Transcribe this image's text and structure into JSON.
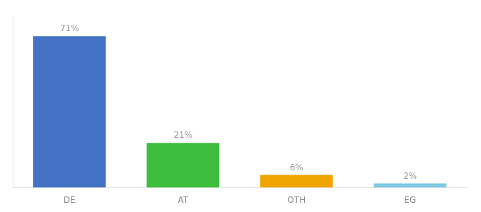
{
  "chart_data": {
    "type": "bar",
    "categories": [
      "DE",
      "AT",
      "OTH",
      "EG"
    ],
    "values": [
      71,
      21,
      6,
      2
    ],
    "value_labels": [
      "71%",
      "21%",
      "6%",
      "2%"
    ],
    "colors": [
      "#4472c4",
      "#3dbf3d",
      "#f0a500",
      "#7ec8e3"
    ],
    "ylim": [
      0,
      80
    ],
    "grid": false,
    "data_labels": true,
    "tick_labels": "x"
  }
}
